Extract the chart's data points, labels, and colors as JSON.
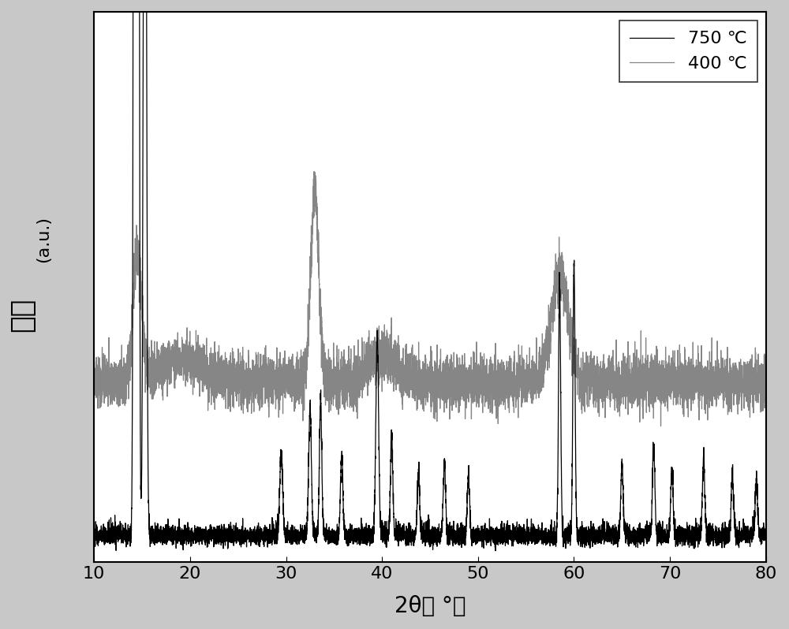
{
  "xmin": 10,
  "xmax": 80,
  "xlabel": "2θ（ °）",
  "ylabel_au": "(a.u.)",
  "ylabel_cn": "强度",
  "xticks": [
    10,
    20,
    30,
    40,
    50,
    60,
    70,
    80
  ],
  "legend_750": "750 ℃",
  "legend_400": "400 ℃",
  "color_750": "#000000",
  "color_400": "#808080",
  "background": "#ffffff",
  "fig_bg": "#c8c8c8"
}
